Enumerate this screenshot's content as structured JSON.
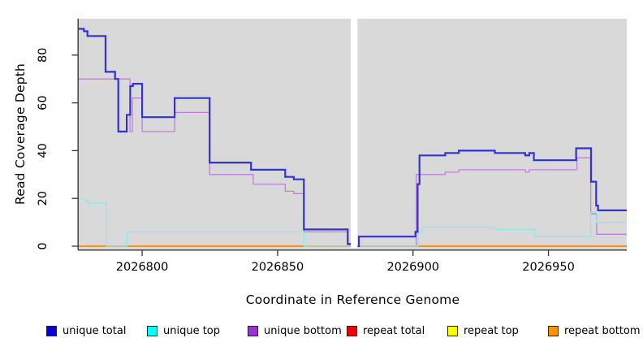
{
  "chart_data": {
    "type": "line",
    "subtype": "step",
    "title": "",
    "xlabel": "Coordinate in Reference Genome",
    "ylabel": "Read Coverage Depth",
    "x_ticks": [
      2026800,
      2026850,
      2026900,
      2026950
    ],
    "y_ticks": [
      0,
      20,
      40,
      60,
      80
    ],
    "xlim": [
      2026776.6,
      2026978.9
    ],
    "ylim": [
      -1.36,
      95.24
    ],
    "gap_x": [
      2026877.0,
      2026879.5
    ],
    "plot_background": "#d9d9d9",
    "axis_color": "#333333",
    "grid": "off",
    "legend_position": "bottom",
    "series": [
      {
        "name": "unique total",
        "color": "#3232d2",
        "legend_color": "#0000cd",
        "line_width": 2.2,
        "segments": [
          {
            "points": [
              [
                2026776.6,
                91
              ],
              [
                2026778.5,
                90
              ],
              [
                2026779.8,
                88
              ],
              [
                2026786.5,
                73
              ],
              [
                2026790,
                70
              ],
              [
                2026791.2,
                48
              ],
              [
                2026794.3,
                55
              ],
              [
                2026795.6,
                67
              ],
              [
                2026796.6,
                68
              ],
              [
                2026800,
                54
              ],
              [
                2026812,
                62
              ],
              [
                2026824.9,
                35
              ],
              [
                2026840.2,
                32
              ],
              [
                2026852.8,
                29
              ],
              [
                2026856,
                28
              ],
              [
                2026859.7,
                7
              ],
              [
                2026875.9,
                1
              ]
            ],
            "end_x": 2026877.0
          },
          {
            "points": [
              [
                2026879.5,
                0
              ],
              [
                2026880,
                4
              ],
              [
                2026900.9,
                6
              ],
              [
                2026901.7,
                26
              ],
              [
                2026902.4,
                38
              ],
              [
                2026911.9,
                39
              ],
              [
                2026916.9,
                40
              ],
              [
                2026930.2,
                39
              ],
              [
                2026941.4,
                38
              ],
              [
                2026942.9,
                39
              ],
              [
                2026944.6,
                36
              ],
              [
                2026960.2,
                41
              ],
              [
                2026965.7,
                27
              ],
              [
                2026967.6,
                17
              ],
              [
                2026968.3,
                15
              ]
            ],
            "end_x": 2026978.9
          }
        ]
      },
      {
        "name": "unique top",
        "color": "#85ecf0",
        "legend_color": "#00ffff",
        "line_width": 1.3,
        "segments": [
          {
            "points": [
              [
                2026776.6,
                20
              ],
              [
                2026778.6,
                19
              ],
              [
                2026780,
                18
              ],
              [
                2026786.9,
                0
              ],
              [
                2026794.5,
                6
              ],
              [
                2026859.7,
                0
              ]
            ],
            "end_x": 2026877.0
          },
          {
            "points": [
              [
                2026879.5,
                0
              ],
              [
                2026901.9,
                6
              ],
              [
                2026903.3,
                8
              ],
              [
                2026930.2,
                7
              ],
              [
                2026944.9,
                4
              ],
              [
                2026965.6,
                14
              ],
              [
                2026967.8,
                10
              ]
            ],
            "end_x": 2026978.9
          }
        ]
      },
      {
        "name": "unique bottom",
        "color": "#bf7fdf",
        "legend_color": "#9933cc",
        "line_width": 1.3,
        "segments": [
          {
            "points": [
              [
                2026776.6,
                70
              ],
              [
                2026795.5,
                48
              ],
              [
                2026796.4,
                62
              ],
              [
                2026800,
                48
              ],
              [
                2026812,
                56
              ],
              [
                2026824.9,
                30
              ],
              [
                2026841,
                26
              ],
              [
                2026852.8,
                23
              ],
              [
                2026856,
                22
              ],
              [
                2026859.8,
                6
              ],
              [
                2026875.9,
                0.5
              ]
            ],
            "end_x": 2026877.0
          },
          {
            "points": [
              [
                2026879.5,
                0
              ],
              [
                2026901.2,
                30
              ],
              [
                2026911.9,
                31
              ],
              [
                2026916.9,
                32
              ],
              [
                2026941.4,
                31
              ],
              [
                2026942.9,
                32
              ],
              [
                2026960.5,
                37
              ],
              [
                2026965.6,
                13.5
              ],
              [
                2026967.8,
                5
              ]
            ],
            "end_x": 2026978.9
          }
        ]
      },
      {
        "name": "repeat total",
        "color": "#ee0000",
        "legend_color": "#ee0000",
        "line_width": 1.3,
        "segments": [
          {
            "points": [
              [
                2026776.6,
                0
              ]
            ],
            "end_x": 2026877.0
          },
          {
            "points": [
              [
                2026879.5,
                0
              ]
            ],
            "end_x": 2026978.9
          }
        ]
      },
      {
        "name": "repeat top",
        "color": "#ffff00",
        "legend_color": "#ffff00",
        "line_width": 1.3,
        "segments": [
          {
            "points": [
              [
                2026776.6,
                0
              ]
            ],
            "end_x": 2026877.0
          },
          {
            "points": [
              [
                2026879.5,
                0
              ]
            ],
            "end_x": 2026978.9
          }
        ]
      },
      {
        "name": "repeat bottom",
        "color": "#ff8c00",
        "legend_color": "#ff9300",
        "line_width": 1.8,
        "segments": [
          {
            "points": [
              [
                2026776.6,
                0
              ]
            ],
            "end_x": 2026877.0
          },
          {
            "points": [
              [
                2026879.5,
                0
              ]
            ],
            "end_x": 2026978.9
          }
        ]
      }
    ]
  }
}
